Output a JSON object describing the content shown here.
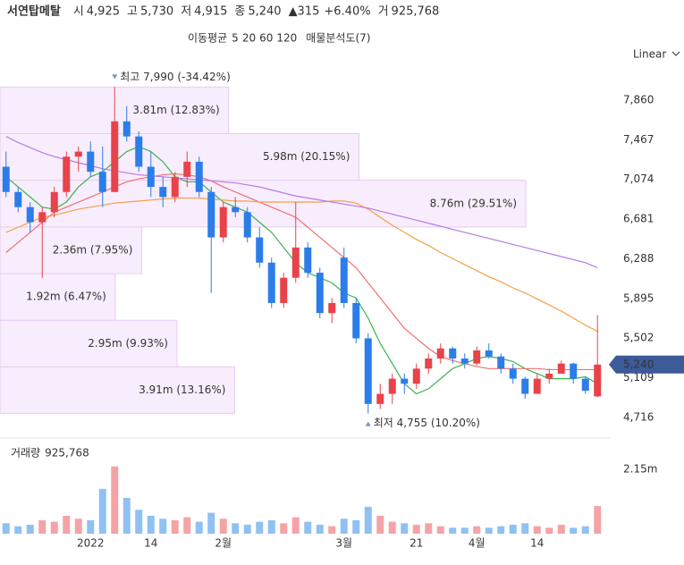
{
  "header": {
    "title": "서연탑메탈",
    "items": [
      {
        "label": "시",
        "value": "4,925"
      },
      {
        "label": "고",
        "value": "5,730"
      },
      {
        "label": "저",
        "value": "4,915"
      },
      {
        "label": "종",
        "value": "5,240"
      }
    ],
    "change": "▲315",
    "change_pct": "+6.40%",
    "volume_label": "거",
    "volume_value": "925,768"
  },
  "chart_data": [
    {
      "type": "candlestick",
      "legend_title": "이동평균",
      "scale": "Linear",
      "up_color": "#e8424a",
      "down_color": "#2b7de9",
      "categories": [
        null,
        null,
        null,
        null,
        null,
        null,
        null,
        "2022",
        null,
        null,
        null,
        null,
        "14",
        null,
        null,
        null,
        null,
        null,
        "2월",
        null,
        null,
        null,
        null,
        null,
        null,
        null,
        null,
        null,
        "3월",
        null,
        null,
        null,
        null,
        null,
        "21",
        null,
        null,
        null,
        null,
        "4월",
        null,
        null,
        null,
        null,
        "14",
        null,
        null,
        null,
        null,
        null
      ],
      "open": [
        7200,
        6950,
        6800,
        6650,
        6750,
        6950,
        7300,
        7350,
        7150,
        6950,
        7650,
        7500,
        7200,
        7000,
        6900,
        7100,
        7250,
        6950,
        6500,
        6800,
        6750,
        6500,
        6250,
        5850,
        6100,
        6400,
        6150,
        5750,
        6300,
        5850,
        5500,
        4850,
        4950,
        5100,
        5050,
        5200,
        5300,
        5400,
        5300,
        5250,
        5380,
        5320,
        5200,
        5100,
        4950,
        5100,
        5150,
        5250,
        5100,
        4925
      ],
      "high": [
        7350,
        7000,
        6850,
        6800,
        7000,
        7350,
        7400,
        7450,
        7400,
        7990,
        7800,
        7550,
        7350,
        7100,
        7150,
        7350,
        7300,
        7000,
        6850,
        6900,
        6800,
        6600,
        6300,
        6150,
        6850,
        6450,
        6200,
        5900,
        6400,
        5900,
        5550,
        5050,
        5150,
        5150,
        5250,
        5350,
        5450,
        5420,
        5350,
        5420,
        5450,
        5350,
        5250,
        5120,
        5150,
        5200,
        5280,
        5260,
        5120,
        5730
      ],
      "low": [
        6900,
        6750,
        6550,
        6100,
        6700,
        6900,
        7150,
        7100,
        6800,
        6950,
        7450,
        7150,
        6900,
        6800,
        6850,
        7000,
        6900,
        5950,
        6450,
        6700,
        6450,
        6200,
        5800,
        5800,
        6050,
        6100,
        5700,
        5650,
        5800,
        5450,
        4755,
        4800,
        4850,
        4950,
        5000,
        5150,
        5250,
        5250,
        5200,
        5230,
        5300,
        5150,
        5050,
        4900,
        4950,
        5050,
        5150,
        5050,
        4950,
        4915
      ],
      "close": [
        6950,
        6800,
        6650,
        6750,
        6950,
        7300,
        7350,
        7150,
        6950,
        7650,
        7500,
        7200,
        7000,
        6900,
        7100,
        7250,
        6950,
        6500,
        6800,
        6750,
        6500,
        6250,
        5850,
        6100,
        6400,
        6150,
        5750,
        5850,
        5850,
        5500,
        4850,
        4950,
        5100,
        5050,
        5200,
        5300,
        5400,
        5300,
        5250,
        5380,
        5320,
        5200,
        5100,
        4950,
        5100,
        5150,
        5250,
        5100,
        4980,
        5240
      ],
      "last_price_label": "5,240",
      "series": [
        {
          "name": "5",
          "color": "#3cb44b",
          "values": [
            7100,
            7000,
            6900,
            6800,
            6780,
            6850,
            7000,
            7100,
            7150,
            7250,
            7350,
            7400,
            7350,
            7250,
            7100,
            7050,
            7050,
            6950,
            6850,
            6800,
            6750,
            6650,
            6550,
            6400,
            6250,
            6150,
            6100,
            6050,
            5950,
            5900,
            5700,
            5450,
            5250,
            5050,
            4950,
            5000,
            5100,
            5200,
            5250,
            5300,
            5320,
            5300,
            5270,
            5200,
            5150,
            5100,
            5100,
            5100,
            5120,
            5050
          ]
        },
        {
          "name": "20",
          "color": "#f07070",
          "values": [
            6350,
            6450,
            6550,
            6650,
            6750,
            6800,
            6850,
            6900,
            6950,
            7000,
            7050,
            7080,
            7100,
            7120,
            7130,
            7120,
            7100,
            7060,
            7000,
            6950,
            6900,
            6850,
            6800,
            6750,
            6700,
            6600,
            6500,
            6400,
            6300,
            6200,
            6050,
            5900,
            5750,
            5600,
            5500,
            5400,
            5320,
            5280,
            5250,
            5220,
            5200,
            5200,
            5200,
            5200,
            5200,
            5190,
            5190,
            5190,
            5190,
            5190
          ]
        },
        {
          "name": "60",
          "color": "#f5a04a",
          "values": [
            6550,
            6600,
            6650,
            6700,
            6720,
            6750,
            6780,
            6800,
            6820,
            6840,
            6850,
            6860,
            6870,
            6880,
            6890,
            6890,
            6890,
            6880,
            6870,
            6860,
            6860,
            6850,
            6850,
            6850,
            6850,
            6850,
            6850,
            6860,
            6860,
            6840,
            6780,
            6700,
            6620,
            6550,
            6480,
            6420,
            6350,
            6290,
            6230,
            6170,
            6110,
            6060,
            6000,
            5950,
            5890,
            5830,
            5770,
            5700,
            5630,
            5570
          ]
        },
        {
          "name": "120",
          "color": "#b57be8",
          "values": [
            7500,
            7440,
            7390,
            7340,
            7300,
            7270,
            7240,
            7210,
            7180,
            7160,
            7140,
            7120,
            7110,
            7100,
            7090,
            7080,
            7070,
            7060,
            7050,
            7040,
            7020,
            7000,
            6970,
            6940,
            6910,
            6890,
            6870,
            6850,
            6830,
            6810,
            6790,
            6760,
            6730,
            6700,
            6670,
            6640,
            6610,
            6580,
            6550,
            6520,
            6490,
            6460,
            6430,
            6400,
            6370,
            6340,
            6310,
            6280,
            6250,
            6200
          ]
        }
      ],
      "ylim": [
        4512,
        8232
      ],
      "yticks": [
        {
          "value": 4716,
          "label": "4,716"
        },
        {
          "value": 5109,
          "label": "5,109"
        },
        {
          "value": 5502,
          "label": "5,502"
        },
        {
          "value": 5895,
          "label": "5,895"
        },
        {
          "value": 6288,
          "label": "6,288"
        },
        {
          "value": 6681,
          "label": "6,681"
        },
        {
          "value": 7074,
          "label": "7,074"
        },
        {
          "value": 7467,
          "label": "7,467"
        },
        {
          "value": 7860,
          "label": "7,860"
        }
      ],
      "annotations": [
        {
          "text": "최고 7,990 (-34.42%)",
          "value": 7990,
          "index": 9,
          "position": "above"
        },
        {
          "text": "최저 4,755 (10.20%)",
          "value": 4755,
          "index": 30,
          "position": "below"
        }
      ],
      "profile": {
        "title": "매물분석도(7)",
        "bins": [
          4755,
          5217,
          5679,
          6141,
          6603,
          7066,
          7528,
          7990
        ],
        "values": [
          3910000,
          2950000,
          1920000,
          2360000,
          8760000,
          5980000,
          3810000
        ],
        "value_labels": [
          "3.91m (13.16%)",
          "2.95m (9.93%)",
          "1.92m (6.47%)",
          "2.36m (7.95%)",
          "8.76m (29.51%)",
          "5.98m (20.15%)",
          "3.81m (12.83%)"
        ]
      }
    },
    {
      "type": "bar",
      "title": "거래량",
      "latest_label": "925,768",
      "values": [
        350000,
        250000,
        300000,
        450000,
        400000,
        600000,
        500000,
        450000,
        1500000,
        2250000,
        1200000,
        800000,
        600000,
        500000,
        450000,
        550000,
        400000,
        700000,
        500000,
        350000,
        300000,
        400000,
        450000,
        350000,
        550000,
        400000,
        300000,
        250000,
        500000,
        450000,
        900000,
        600000,
        400000,
        350000,
        300000,
        350000,
        250000,
        200000,
        200000,
        250000,
        200000,
        250000,
        300000,
        350000,
        250000,
        200000,
        300000,
        200000,
        250000,
        925768
      ],
      "ylim": [
        0,
        3200000
      ],
      "yticks": [
        {
          "value": 2150000,
          "label": "2.15m"
        }
      ]
    }
  ]
}
